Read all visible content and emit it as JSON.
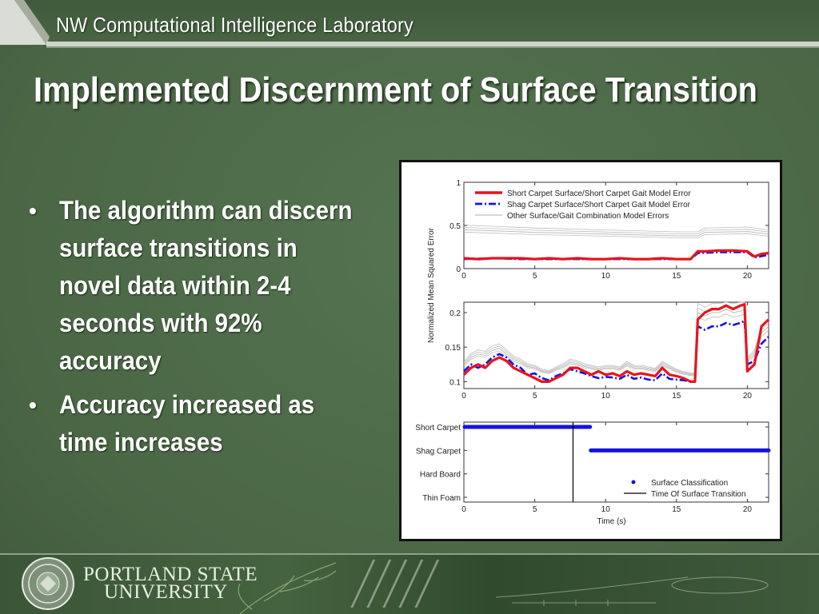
{
  "header": {
    "lab_name": "NW Computational Intelligence Laboratory"
  },
  "slide": {
    "title": "Implemented Discernment of Surface Transition"
  },
  "bullets": [
    {
      "symbol": "•",
      "text": "The algorithm can discern surface transitions in novel data within 2-4 seconds with 92% accuracy"
    },
    {
      "symbol": "•",
      "text": "Accuracy increased as time increases"
    }
  ],
  "footer": {
    "university_line1": "PORTLAND STATE",
    "university_line2": "UNIVERSITY",
    "seal_icon": "university-seal-icon"
  },
  "colors": {
    "background": "#4e6a48",
    "primary_series": "#e8141c",
    "secondary_series": "#1414e0",
    "other_series": "#bdbdbd"
  },
  "chart_data": [
    {
      "type": "line",
      "title": "",
      "xlabel": "",
      "ylabel": "",
      "xlim": [
        0,
        21.5
      ],
      "ylim": [
        0,
        1
      ],
      "xticks": [
        0,
        5,
        10,
        15,
        20
      ],
      "yticks": [
        0,
        0.5,
        1
      ],
      "legend_position": "top-right",
      "series": [
        {
          "name": "Short Carpet Surface/Short Carpet Gait Model Error",
          "color": "#e8141c",
          "style": "solid",
          "x": [
            0,
            1,
            2,
            3,
            4,
            5,
            6,
            7,
            8,
            9,
            10,
            11,
            12,
            13,
            14,
            15,
            16,
            16.5,
            17,
            18,
            19,
            20,
            20.5,
            21,
            21.5
          ],
          "y": [
            0.12,
            0.11,
            0.12,
            0.12,
            0.12,
            0.11,
            0.12,
            0.11,
            0.12,
            0.11,
            0.11,
            0.12,
            0.11,
            0.11,
            0.12,
            0.11,
            0.11,
            0.2,
            0.2,
            0.21,
            0.21,
            0.2,
            0.14,
            0.17,
            0.18
          ]
        },
        {
          "name": "Shag Carpet Surface/Short Carpet Gait Model Error",
          "color": "#1414e0",
          "style": "dashdot",
          "x": [
            0,
            2,
            4,
            6,
            8,
            10,
            12,
            14,
            16,
            16.5,
            18,
            20,
            20.5,
            21.5
          ],
          "y": [
            0.11,
            0.12,
            0.11,
            0.11,
            0.11,
            0.11,
            0.11,
            0.11,
            0.11,
            0.18,
            0.19,
            0.19,
            0.13,
            0.16
          ]
        },
        {
          "name": "Other Surface/Gait Combination Model Errors",
          "color": "#bdbdbd",
          "style": "solid",
          "x": [
            0,
            5,
            10,
            15,
            16.5,
            17,
            20,
            21.5
          ],
          "y": [
            0.45,
            0.42,
            0.4,
            0.38,
            0.38,
            0.42,
            0.43,
            0.4
          ]
        }
      ]
    },
    {
      "type": "line",
      "title": "",
      "xlabel": "",
      "ylabel": "Normalized Mean Squared Error",
      "xlim": [
        0,
        21.5
      ],
      "ylim": [
        0.09,
        0.215
      ],
      "xticks": [
        0,
        5,
        10,
        15,
        20
      ],
      "yticks": [
        0.1,
        0.15,
        0.2
      ],
      "series": [
        {
          "name": "Short Carpet Surface/Short Carpet Gait Model Error",
          "color": "#e8141c",
          "style": "solid",
          "x": [
            0,
            0.5,
            1,
            1.5,
            2,
            2.5,
            3,
            3.5,
            4,
            4.5,
            5,
            5.5,
            6,
            6.5,
            7,
            7.5,
            8,
            8.5,
            9,
            9.5,
            10,
            10.5,
            11,
            11.5,
            12,
            12.5,
            13,
            13.5,
            14,
            14.5,
            15,
            15.5,
            16,
            16.3,
            16.5,
            17,
            17.5,
            18,
            18.5,
            19,
            19.5,
            19.8,
            20,
            20.5,
            21,
            21.5
          ],
          "y": [
            0.11,
            0.12,
            0.125,
            0.12,
            0.13,
            0.135,
            0.13,
            0.12,
            0.115,
            0.11,
            0.105,
            0.1,
            0.1,
            0.105,
            0.11,
            0.12,
            0.12,
            0.115,
            0.11,
            0.115,
            0.11,
            0.112,
            0.108,
            0.115,
            0.11,
            0.112,
            0.11,
            0.108,
            0.12,
            0.11,
            0.108,
            0.105,
            0.1,
            0.1,
            0.19,
            0.2,
            0.205,
            0.205,
            0.21,
            0.205,
            0.21,
            0.212,
            0.115,
            0.125,
            0.18,
            0.19
          ]
        },
        {
          "name": "Shag Carpet Surface/Short Carpet Gait Model Error",
          "color": "#1414e0",
          "style": "dashdot",
          "x": [
            0,
            0.5,
            1,
            1.5,
            2,
            2.5,
            3,
            3.5,
            4,
            4.5,
            5,
            5.5,
            6,
            6.5,
            7,
            7.5,
            8,
            8.5,
            9,
            9.5,
            10,
            10.5,
            11,
            11.5,
            12,
            12.5,
            13,
            13.5,
            14,
            14.5,
            15,
            15.5,
            16,
            16.3,
            16.5,
            17,
            17.5,
            18,
            18.5,
            19,
            19.5,
            19.8,
            20,
            20.5,
            21,
            21.5
          ],
          "y": [
            0.115,
            0.125,
            0.12,
            0.125,
            0.135,
            0.14,
            0.135,
            0.125,
            0.12,
            0.11,
            0.112,
            0.105,
            0.102,
            0.108,
            0.112,
            0.118,
            0.115,
            0.112,
            0.108,
            0.105,
            0.107,
            0.106,
            0.104,
            0.11,
            0.104,
            0.106,
            0.103,
            0.102,
            0.112,
            0.104,
            0.103,
            0.102,
            0.1,
            0.1,
            0.18,
            0.175,
            0.18,
            0.18,
            0.185,
            0.182,
            0.185,
            0.188,
            0.125,
            0.13,
            0.155,
            0.165
          ]
        },
        {
          "name": "Other Surface/Gait Combination Model Errors",
          "color": "#bdbdbd",
          "style": "solid",
          "x": [
            0,
            0.5,
            1,
            1.5,
            2,
            2.5,
            3,
            3.5,
            4,
            4.5,
            5,
            5.5,
            6,
            6.5,
            7,
            7.5,
            8,
            8.5,
            9,
            9.5,
            10,
            10.5,
            11,
            11.5,
            12,
            12.5,
            13,
            13.5,
            14,
            14.5,
            15,
            15.5,
            16,
            16.3,
            16.5,
            17,
            17.5,
            18,
            18.5,
            19,
            19.5,
            19.8,
            20,
            20.5,
            21,
            21.5
          ],
          "y": [
            0.125,
            0.135,
            0.14,
            0.138,
            0.145,
            0.148,
            0.14,
            0.132,
            0.128,
            0.122,
            0.12,
            0.115,
            0.113,
            0.118,
            0.122,
            0.128,
            0.126,
            0.122,
            0.12,
            0.118,
            0.12,
            0.12,
            0.118,
            0.125,
            0.12,
            0.12,
            0.118,
            0.116,
            0.125,
            0.12,
            0.115,
            0.112,
            0.11,
            0.11,
            0.2,
            0.195,
            0.2,
            0.2,
            0.205,
            0.2,
            0.202,
            0.205,
            0.13,
            0.14,
            0.17,
            0.18
          ]
        }
      ]
    },
    {
      "type": "scatter",
      "title": "",
      "xlabel": "Time (s)",
      "ylabel": "",
      "xlim": [
        0,
        21.5
      ],
      "xticks": [
        0,
        5,
        10,
        15,
        20
      ],
      "categories": [
        "Short Carpet",
        "Shag Carpet",
        "Hard Board",
        "Thin Foam"
      ],
      "legend_position": "bottom-right",
      "series": [
        {
          "name": "Surface Classification",
          "color": "#1414e0",
          "segments": [
            {
              "category": "Short Carpet",
              "x_start": 0,
              "x_end": 8.9
            },
            {
              "category": "Shag Carpet",
              "x_start": 8.9,
              "x_end": 21.5
            }
          ]
        },
        {
          "name": "Time Of Surface Transition",
          "color": "#000000",
          "x": 7.7
        }
      ]
    }
  ]
}
